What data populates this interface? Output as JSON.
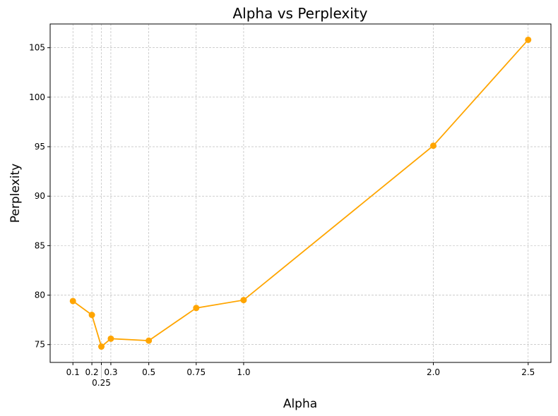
{
  "chart_data": {
    "type": "line",
    "title": "Alpha vs Perplexity",
    "xlabel": "Alpha",
    "ylabel": "Perplexity",
    "x": [
      0.1,
      0.2,
      0.25,
      0.3,
      0.5,
      0.75,
      1.0,
      2.0,
      2.5
    ],
    "x_tick_labels": [
      "0.1",
      "0.2",
      "0.25",
      "0.3",
      "0.5",
      "0.75",
      "1.0",
      "2.0",
      "2.5"
    ],
    "series": [
      {
        "name": "Perplexity",
        "values": [
          79.4,
          78.0,
          74.8,
          75.6,
          75.4,
          78.7,
          79.5,
          95.1,
          105.8
        ],
        "color": "#FFA500"
      }
    ],
    "y_ticks": [
      75,
      80,
      85,
      90,
      95,
      100,
      105
    ],
    "xlim": [
      -0.02,
      2.62
    ],
    "ylim": [
      73.2,
      107.4
    ],
    "grid": true,
    "marker": "circle"
  }
}
